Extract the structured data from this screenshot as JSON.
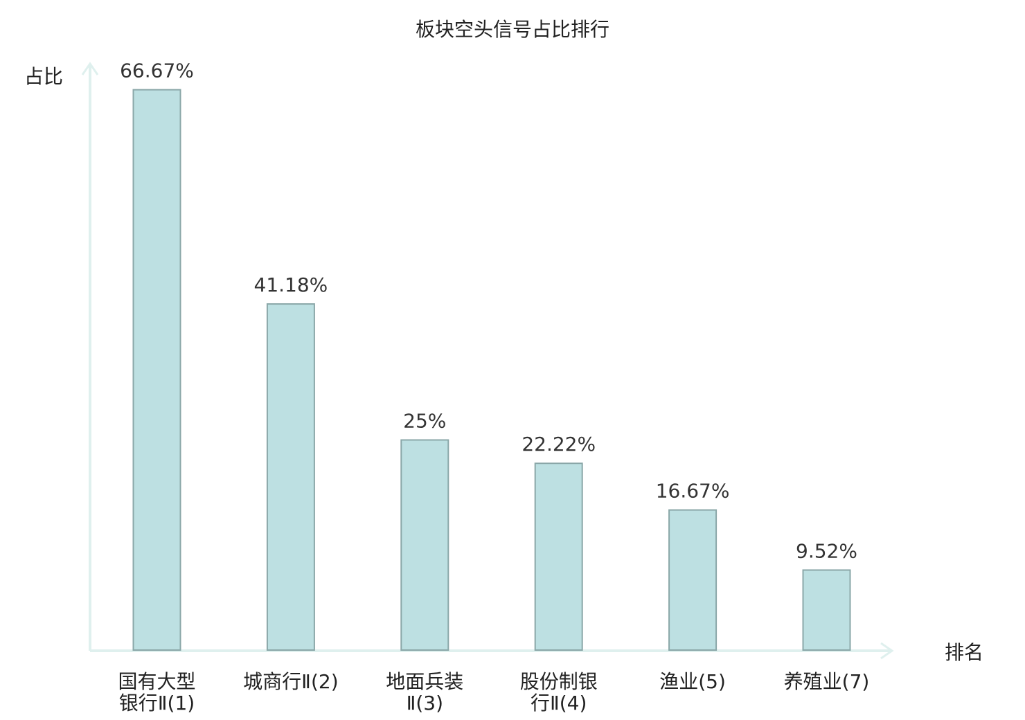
{
  "chart_data": {
    "type": "bar",
    "title": "板块空头信号占比排行",
    "ylabel": "占比",
    "xlabel": "排名",
    "ylim": [
      0,
      70
    ],
    "grid": false,
    "categories": [
      {
        "lines": [
          "国有大型",
          "银行Ⅱ(1)"
        ],
        "highlight": false
      },
      {
        "lines": [
          "城商行Ⅱ(2)"
        ],
        "highlight": false
      },
      {
        "lines": [
          "地面兵装",
          "Ⅱ(3)"
        ],
        "highlight": false
      },
      {
        "lines": [
          "股份制银",
          "行Ⅱ(4)"
        ],
        "highlight": false
      },
      {
        "lines": [
          "渔业(5)"
        ],
        "highlight": false
      },
      {
        "lines": [
          "养殖业(7)"
        ],
        "highlight": true
      }
    ],
    "values": [
      66.67,
      41.18,
      25,
      22.22,
      16.67,
      9.52
    ],
    "value_labels": [
      "66.67%",
      "41.18%",
      "25%",
      "22.22%",
      "16.67%",
      "9.52%"
    ]
  },
  "colors": {
    "bar_fill": "#bde0e2",
    "bar_stroke": "#8aa7a8",
    "axis": "#dff0ee",
    "text": "#333333",
    "highlight_text": "#e0201b"
  }
}
